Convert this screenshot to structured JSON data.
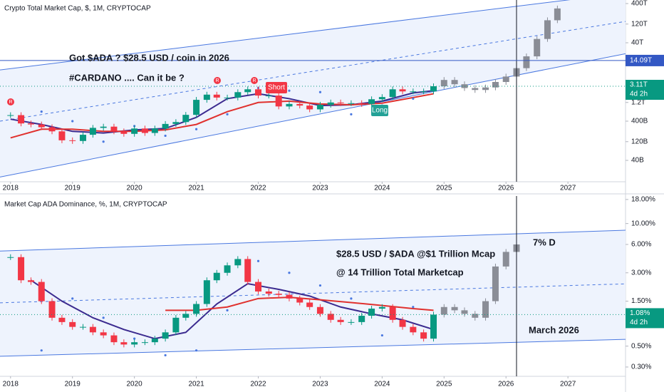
{
  "chart_data": [
    {
      "type": "candlestick",
      "title": "Crypto Total Market Cap, $, 1M, CRYPTOCAP",
      "log": true,
      "xlim": [
        2017.83,
        2027.93
      ],
      "xticks": [
        2018,
        2019,
        2020,
        2021,
        2022,
        2023,
        2024,
        2025,
        2026,
        2027
      ],
      "ylim": [
        11400000000.0,
        493000000000000.0
      ],
      "yticks": [
        {
          "value": 400000000000000.0,
          "label": "400T"
        },
        {
          "value": 120000000000000.0,
          "label": "120T"
        },
        {
          "value": 40000000000000.0,
          "label": "40T"
        },
        {
          "value": 1200000000000.0,
          "label": "1.2T"
        },
        {
          "value": 400000000000.0,
          "label": "400B"
        },
        {
          "value": 120000000000.0,
          "label": "120B"
        },
        {
          "value": 40000000000.0,
          "label": "40B"
        }
      ],
      "up_color": "#089981",
      "down_color": "#f23645",
      "band": "#eef3fd",
      "x": [
        2018.0,
        2018.17,
        2018.33,
        2018.5,
        2018.67,
        2018.83,
        2019.0,
        2019.17,
        2019.33,
        2019.5,
        2019.67,
        2019.83,
        2020.0,
        2020.17,
        2020.33,
        2020.5,
        2020.67,
        2020.83,
        2021.0,
        2021.17,
        2021.33,
        2021.5,
        2021.67,
        2021.83,
        2022.0,
        2022.17,
        2022.33,
        2022.5,
        2022.67,
        2022.83,
        2023.0,
        2023.17,
        2023.33,
        2023.5,
        2023.67,
        2023.83,
        2024.0,
        2024.17,
        2024.33,
        2024.5,
        2024.67,
        2024.83
      ],
      "values": [
        570000000000.0,
        350000000000.0,
        330000000000.0,
        280000000000.0,
        220000000000.0,
        130000000000.0,
        125000000000.0,
        180000000000.0,
        270000000000.0,
        290000000000.0,
        220000000000.0,
        190000000000.0,
        260000000000.0,
        200000000000.0,
        260000000000.0,
        340000000000.0,
        380000000000.0,
        580000000000.0,
        1400000000000.0,
        1900000000000.0,
        1600000000000.0,
        1600000000000.0,
        2200000000000.0,
        2600000000000.0,
        1800000000000.0,
        1800000000000.0,
        950000000000.0,
        1100000000000.0,
        1000000000000.0,
        800000000000.0,
        1050000000000.0,
        1200000000000.0,
        1150000000000.0,
        1150000000000.0,
        1100000000000.0,
        1450000000000.0,
        1650000000000.0,
        2600000000000.0,
        2300000000000.0,
        2300000000000.0,
        2300000000000.0,
        3110000000000.0
      ],
      "projection": {
        "color": "#8a8d96",
        "x": [
          2025.0,
          2025.17,
          2025.33,
          2025.5,
          2025.67,
          2025.83,
          2026.0,
          2026.17,
          2026.33,
          2026.5,
          2026.67,
          2026.83
        ],
        "values": [
          4500000000000.0,
          3500000000000.0,
          2800000000000.0,
          2500000000000.0,
          2900000000000.0,
          4000000000000.0,
          5500000000000.0,
          9000000000000.0,
          18000000000000.0,
          50000000000000.0,
          150000000000000.0,
          300000000000000.0
        ]
      },
      "lines": [
        {
          "color": "#4a78e0",
          "style": "solid",
          "x": [
            2017.83,
            2027.93
          ],
          "values": [
            8100000000000.0,
            750000000000000.0
          ]
        },
        {
          "color": "#4a78e0",
          "style": "solid",
          "x": [
            2017.83,
            2027.93
          ],
          "values": [
            15000000000.0,
            21000000000000.0
          ]
        },
        {
          "color": "#4a78e0",
          "style": "dashed",
          "x": [
            2017.83,
            2027.93
          ],
          "values": [
            400000000000.0,
            140000000000000.0
          ]
        },
        {
          "color": "#3b2a8f",
          "style": "solid",
          "x": [
            2018.0,
            2018.5,
            2019.0,
            2019.5,
            2020.0,
            2020.5,
            2021.0,
            2021.5,
            2022.0,
            2022.5,
            2023.0,
            2023.5,
            2024.0,
            2024.5,
            2024.83
          ],
          "values": [
            450000000000.0,
            330000000000.0,
            220000000000.0,
            200000000000.0,
            240000000000.0,
            260000000000.0,
            500000000000.0,
            1500000000000.0,
            2000000000000.0,
            1500000000000.0,
            1000000000000.0,
            1050000000000.0,
            1300000000000.0,
            2100000000000.0,
            2400000000000.0
          ]
        },
        {
          "color": "#e0312e",
          "style": "solid",
          "x": [
            2018.0,
            2018.5,
            2019.0,
            2019.5,
            2020.0,
            2020.5,
            2021.0,
            2021.5,
            2022.0,
            2022.5,
            2023.0,
            2023.5,
            2024.0,
            2024.5,
            2024.83
          ],
          "values": [
            150000000000.0,
            250000000000.0,
            250000000000.0,
            220000000000.0,
            220000000000.0,
            240000000000.0,
            330000000000.0,
            700000000000.0,
            1200000000000.0,
            1300000000000.0,
            1100000000000.0,
            1050000000000.0,
            1150000000000.0,
            1600000000000.0,
            2000000000000.0
          ]
        }
      ],
      "dots": {
        "color": "#4a78e0",
        "x": [
          2018.5,
          2019.0,
          2019.5,
          2020.0,
          2020.5,
          2021.0,
          2021.5,
          2022.0,
          2022.5,
          2023.0,
          2023.5,
          2024.0,
          2024.5
        ],
        "values": [
          700000000000.0,
          400000000000.0,
          120000000000.0,
          300000000000.0,
          170000000000.0,
          250000000000.0,
          600000000000.0,
          2800000000000.0,
          2400000000000.0,
          2200000000000.0,
          600000000000.0,
          1000000000000.0,
          1500000000000.0
        ]
      },
      "hline": {
        "value": 14090000000000.0,
        "label": "14.09T",
        "color": "#3358c4"
      },
      "marker_x": 2026.17,
      "last": {
        "value": 3110000000000.0,
        "label": "3.11T"
      },
      "countdown": "4d 2h",
      "notes": [
        "Got $ADA ? $28.5 USD / coin in 2026",
        "#CARDANO .... Can it be ?"
      ],
      "tags": [
        "Short",
        "Long",
        "R",
        "R",
        "R"
      ]
    },
    {
      "type": "candlestick",
      "title": "Market Cap ADA Dominance, %, 1M, CRYPTOCAP",
      "log": true,
      "xlim": [
        2017.83,
        2027.93
      ],
      "xticks": [
        2018,
        2019,
        2020,
        2021,
        2022,
        2023,
        2024,
        2025,
        2026,
        2027
      ],
      "ylim": [
        0.239,
        19.6
      ],
      "yticks": [
        {
          "value": 18,
          "label": "18.00%"
        },
        {
          "value": 10,
          "label": "10.00%"
        },
        {
          "value": 6,
          "label": "6.00%"
        },
        {
          "value": 3,
          "label": "3.00%"
        },
        {
          "value": 1.5,
          "label": "1.50%"
        },
        {
          "value": 0.5,
          "label": "0.50%"
        },
        {
          "value": 0.3,
          "label": "0.30%"
        }
      ],
      "up_color": "#089981",
      "down_color": "#f23645",
      "band": "#eef3fd",
      "x": [
        2018.0,
        2018.17,
        2018.33,
        2018.5,
        2018.67,
        2018.83,
        2019.0,
        2019.17,
        2019.33,
        2019.5,
        2019.67,
        2019.83,
        2020.0,
        2020.17,
        2020.33,
        2020.5,
        2020.67,
        2020.83,
        2021.0,
        2021.17,
        2021.33,
        2021.5,
        2021.67,
        2021.83,
        2022.0,
        2022.17,
        2022.33,
        2022.5,
        2022.67,
        2022.83,
        2023.0,
        2023.17,
        2023.33,
        2023.5,
        2023.67,
        2023.83,
        2024.0,
        2024.17,
        2024.33,
        2024.5,
        2024.67,
        2024.83
      ],
      "values": [
        4.4,
        2.5,
        2.4,
        1.5,
        1.0,
        0.9,
        0.8,
        0.8,
        0.7,
        0.65,
        0.55,
        0.52,
        0.55,
        0.55,
        0.6,
        0.7,
        1.0,
        1.1,
        1.4,
        2.5,
        3.0,
        3.6,
        4.2,
        2.4,
        1.9,
        1.8,
        1.75,
        1.6,
        1.45,
        1.3,
        1.1,
        0.95,
        0.9,
        0.9,
        1.05,
        1.25,
        1.3,
        0.95,
        0.8,
        0.7,
        0.6,
        1.08
      ],
      "projection": {
        "color": "#8a8d96",
        "x": [
          2025.0,
          2025.17,
          2025.33,
          2025.5,
          2025.67,
          2025.83,
          2026.0,
          2026.17
        ],
        "values": [
          1.3,
          1.2,
          1.1,
          1.0,
          1.5,
          3.5,
          5.0,
          6.0
        ]
      },
      "lines": [
        {
          "color": "#4a78e0",
          "style": "solid",
          "x": [
            2017.83,
            2027.93
          ],
          "values": [
            5.1,
            8.5
          ]
        },
        {
          "color": "#4a78e0",
          "style": "solid",
          "x": [
            2017.83,
            2027.93
          ],
          "values": [
            0.39,
            0.59
          ]
        },
        {
          "color": "#4a78e0",
          "style": "dashed",
          "x": [
            2017.83,
            2027.93
          ],
          "values": [
            1.44,
            2.29
          ]
        },
        {
          "color": "#3b2a8f",
          "style": "solid",
          "x": [
            2018.33,
            2018.83,
            2019.33,
            2019.83,
            2020.33,
            2020.83,
            2021.33,
            2021.83,
            2022.33,
            2022.83,
            2023.33,
            2023.83,
            2024.33,
            2024.83
          ],
          "values": [
            2.5,
            1.5,
            1.0,
            0.75,
            0.6,
            0.7,
            1.4,
            2.3,
            2.0,
            1.7,
            1.3,
            1.1,
            0.95,
            0.75
          ]
        },
        {
          "color": "#e0312e",
          "style": "solid",
          "x": [
            2020.5,
            2021.0,
            2021.5,
            2022.0,
            2022.5,
            2023.0,
            2023.5,
            2024.0,
            2024.5,
            2024.83
          ],
          "values": [
            1.2,
            1.2,
            1.3,
            1.6,
            1.65,
            1.55,
            1.45,
            1.35,
            1.25,
            1.2
          ]
        }
      ],
      "dots": {
        "color": "#4a78e0",
        "x": [
          2018.5,
          2019.0,
          2019.5,
          2020.0,
          2020.5,
          2021.0,
          2021.5,
          2022.0,
          2022.5,
          2023.0,
          2023.5,
          2024.0,
          2024.5
        ],
        "values": [
          0.45,
          1.6,
          1.0,
          0.6,
          0.4,
          0.45,
          1.2,
          4.0,
          3.0,
          2.2,
          1.6,
          0.65,
          1.3
        ]
      },
      "marker_x": 2026.17,
      "last": {
        "value": 1.08,
        "label": "1.08%"
      },
      "countdown": "4d 2h",
      "notes": [
        "$28.5 USD / $ADA @$1 Trillion Mcap",
        "@ 14 Trillion Total Marketcap",
        "7% D",
        "March 2026"
      ],
      "tags": []
    }
  ]
}
